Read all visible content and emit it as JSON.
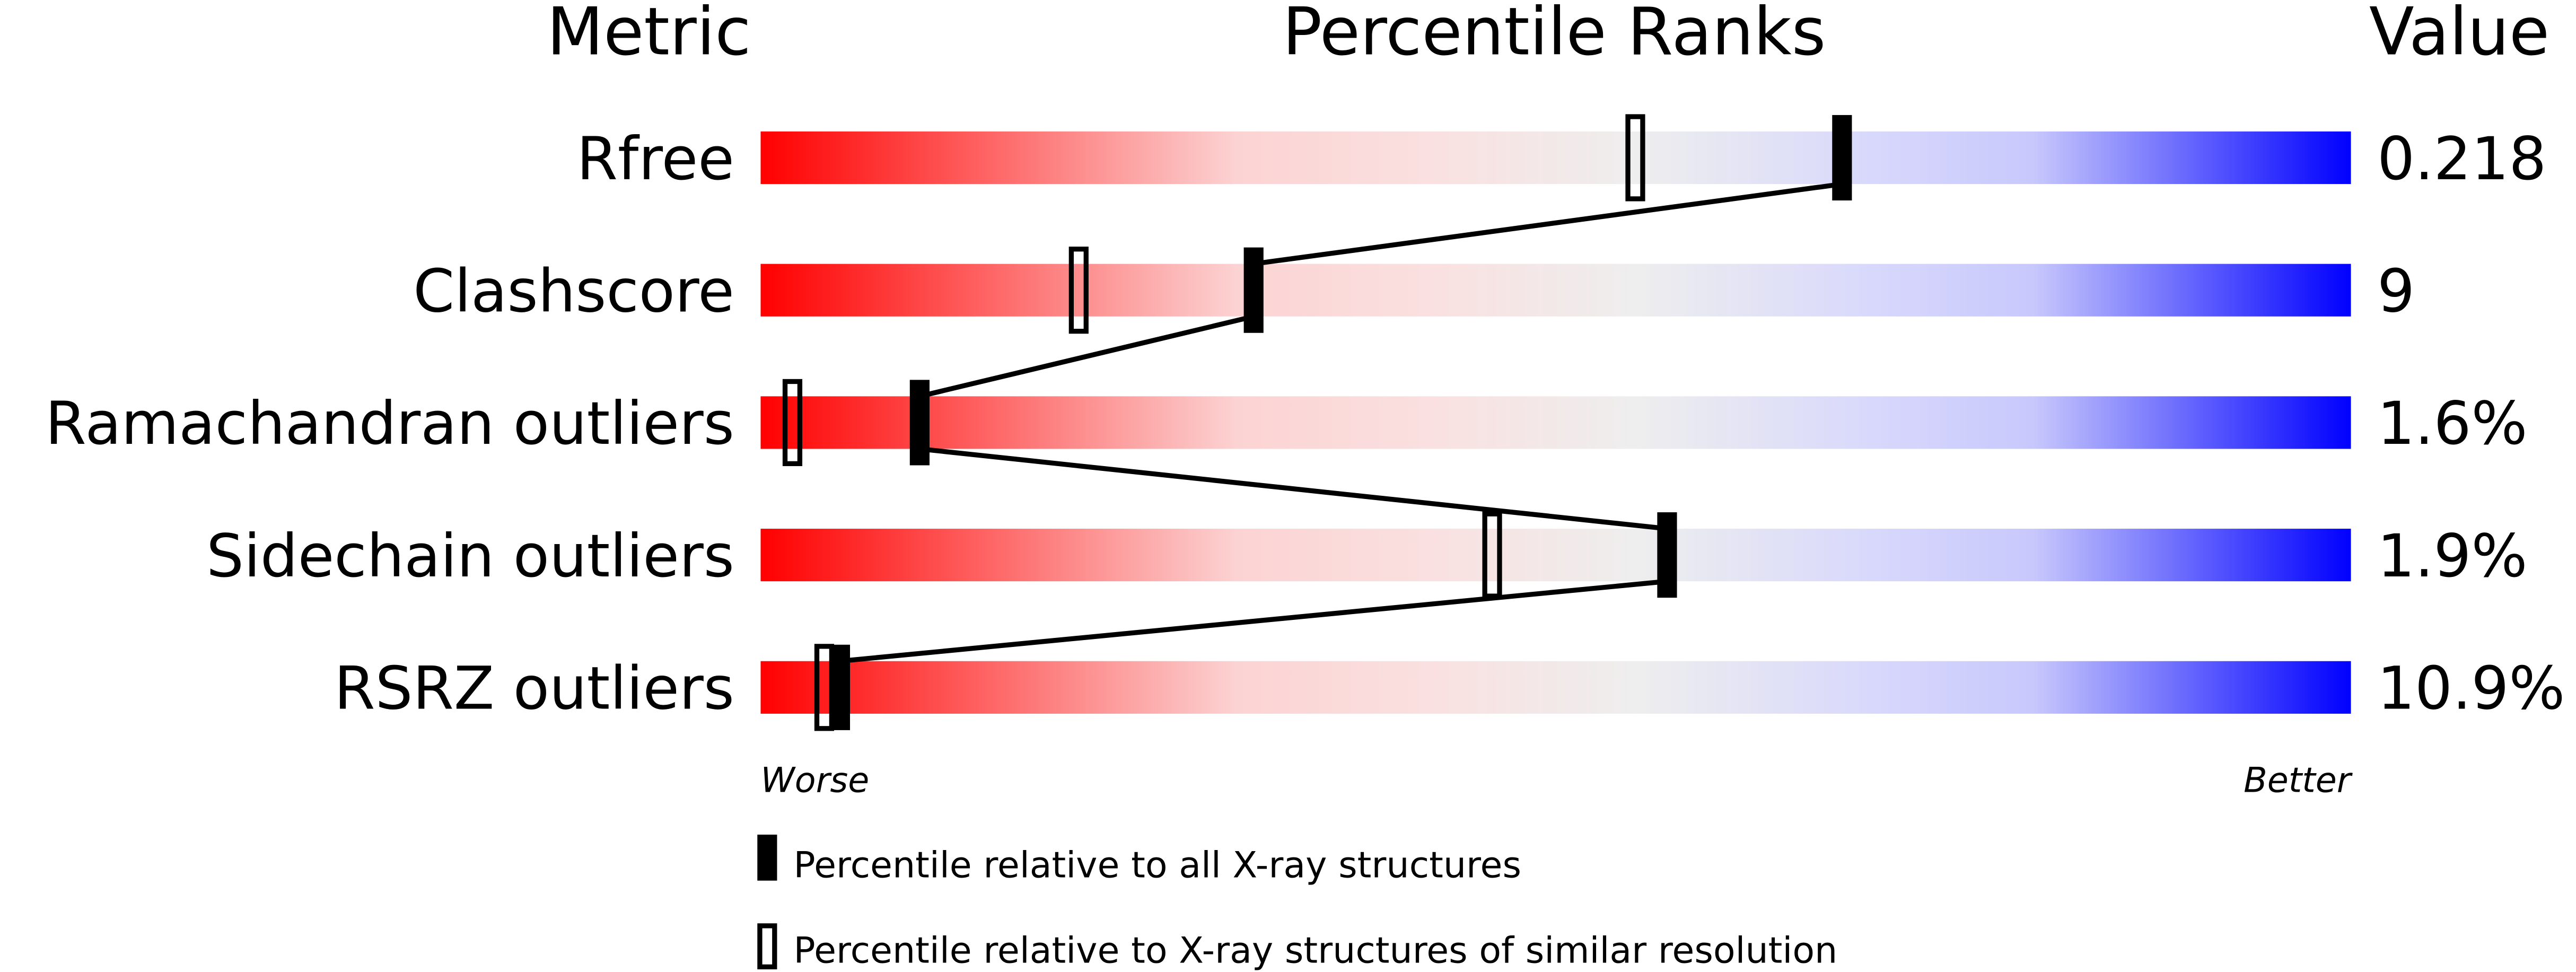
{
  "chart_data": {
    "type": "bar",
    "headers": {
      "metric": "Metric",
      "ranks": "Percentile Ranks",
      "value": "Value"
    },
    "categories": [
      "Rfree",
      "Clashscore",
      "Ramachandran outliers",
      "Sidechain outliers",
      "RSRZ outliers"
    ],
    "values_text": [
      "0.218",
      "9",
      "1.6%",
      "1.9%",
      "10.9%"
    ],
    "xlim": [
      0,
      100
    ],
    "series": [
      {
        "name": "Percentile relative to all X-ray structures",
        "marker": "filled",
        "values": [
          68,
          31,
          10,
          57,
          5
        ]
      },
      {
        "name": "Percentile relative to X-ray structures of similar resolution",
        "marker": "open",
        "values": [
          55,
          20,
          2,
          46,
          4
        ]
      }
    ],
    "axis_left_label": "Worse",
    "axis_right_label": "Better",
    "gradient_colors": [
      "#ff0000",
      "#fcd6d6",
      "#f0f0f0",
      "#d8d8ff",
      "#0000ff"
    ],
    "legend_placement": "bottom"
  }
}
